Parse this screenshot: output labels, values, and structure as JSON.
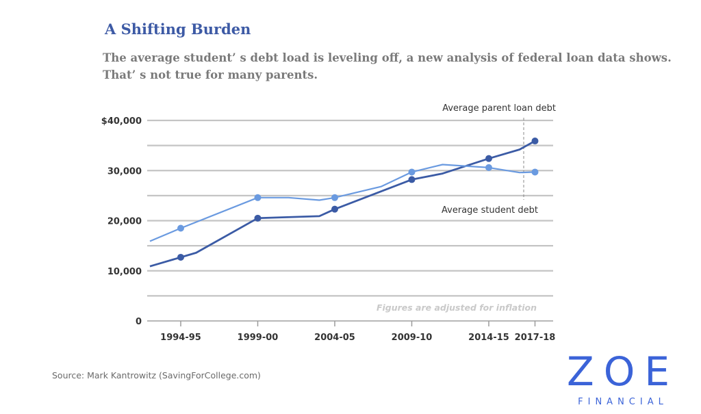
{
  "header": {
    "title": "A Shifting Burden",
    "subtitle_line1": "The average student’ s debt load is leveling off, a new analysis of federal loan data shows.",
    "subtitle_line2": "That’ s not true for many parents."
  },
  "chart_data": {
    "type": "line",
    "x_ticks": [
      "1994-95",
      "1999-00",
      "2004-05",
      "2009-10",
      "2014-15",
      "2017-18"
    ],
    "y_ticks": [
      "$40,000",
      "30,000",
      "20,000",
      "10,000",
      "0"
    ],
    "ylim": [
      0,
      40000
    ],
    "grid": true,
    "note": "Figures are adjusted for inflation",
    "series": [
      {
        "name": "Average parent loan debt",
        "color": "#3b5ba5",
        "points": [
          [
            1993,
            10900
          ],
          [
            1995,
            12700
          ],
          [
            1996,
            13600
          ],
          [
            2000,
            20500
          ],
          [
            2004,
            20900
          ],
          [
            2005,
            22300
          ],
          [
            2010,
            28200
          ],
          [
            2012,
            29400
          ],
          [
            2015,
            32400
          ],
          [
            2017,
            34200
          ],
          [
            2018,
            35900
          ]
        ],
        "markers": [
          1995,
          2000,
          2005,
          2010,
          2015,
          2018
        ]
      },
      {
        "name": "Average student debt",
        "color": "#6a9ae0",
        "points": [
          [
            1993,
            15900
          ],
          [
            1995,
            18500
          ],
          [
            2000,
            24600
          ],
          [
            2002,
            24600
          ],
          [
            2004,
            24100
          ],
          [
            2005,
            24600
          ],
          [
            2008,
            26800
          ],
          [
            2010,
            29700
          ],
          [
            2012,
            31200
          ],
          [
            2015,
            30600
          ],
          [
            2017,
            29600
          ],
          [
            2018,
            29700
          ]
        ],
        "markers": [
          1995,
          2000,
          2005,
          2010,
          2015,
          2018
        ]
      }
    ]
  },
  "footer": {
    "source": "Source: Mark Kantrowitz (SavingForCollege.com)",
    "logo_main": "ZOE",
    "logo_sub": "FINANCIAL"
  }
}
